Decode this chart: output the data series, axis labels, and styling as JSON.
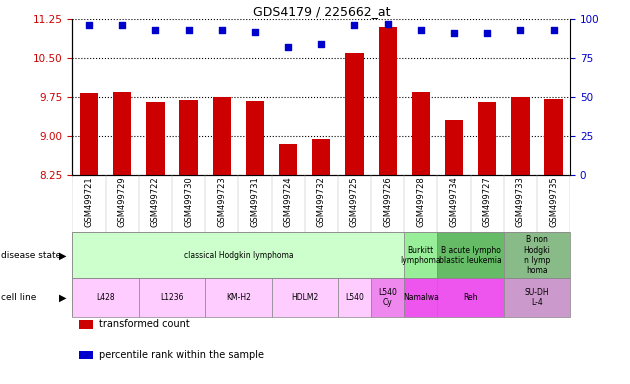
{
  "title": "GDS4179 / 225662_at",
  "samples": [
    "GSM499721",
    "GSM499729",
    "GSM499722",
    "GSM499730",
    "GSM499723",
    "GSM499731",
    "GSM499724",
    "GSM499732",
    "GSM499725",
    "GSM499726",
    "GSM499728",
    "GSM499734",
    "GSM499727",
    "GSM499733",
    "GSM499735"
  ],
  "bar_values": [
    9.82,
    9.84,
    9.65,
    9.7,
    9.75,
    9.68,
    8.85,
    8.93,
    10.6,
    11.1,
    9.84,
    9.3,
    9.65,
    9.75,
    9.72
  ],
  "dot_values": [
    96,
    96,
    93,
    93,
    93,
    92,
    82,
    84,
    96,
    97,
    93,
    91,
    91,
    93,
    93
  ],
  "ylim_left": [
    8.25,
    11.25
  ],
  "ylim_right": [
    0,
    100
  ],
  "yticks_left": [
    8.25,
    9.0,
    9.75,
    10.5,
    11.25
  ],
  "yticks_right": [
    0,
    25,
    50,
    75,
    100
  ],
  "bar_color": "#cc0000",
  "dot_color": "#0000cc",
  "chart_bg": "#ffffff",
  "grid_color": "#000000",
  "xtick_bg": "#d0d0d0",
  "disease_state_groups": [
    {
      "label": "classical Hodgkin lymphoma",
      "start": 0,
      "end": 9,
      "color": "#ccffcc"
    },
    {
      "label": "Burkitt\nlymphoma",
      "start": 10,
      "end": 10,
      "color": "#99ee99"
    },
    {
      "label": "B acute lympho\nblastic leukemia",
      "start": 11,
      "end": 12,
      "color": "#66bb66"
    },
    {
      "label": "B non\nHodgki\nn lymp\nhoma",
      "start": 13,
      "end": 14,
      "color": "#88bb88"
    }
  ],
  "cell_line_groups": [
    {
      "label": "L428",
      "start": 0,
      "end": 1,
      "color": "#ffccff"
    },
    {
      "label": "L1236",
      "start": 2,
      "end": 3,
      "color": "#ffccff"
    },
    {
      "label": "KM-H2",
      "start": 4,
      "end": 5,
      "color": "#ffccff"
    },
    {
      "label": "HDLM2",
      "start": 6,
      "end": 7,
      "color": "#ffccff"
    },
    {
      "label": "L540",
      "start": 8,
      "end": 8,
      "color": "#ffccff"
    },
    {
      "label": "L540\nCy",
      "start": 9,
      "end": 9,
      "color": "#ee88ee"
    },
    {
      "label": "Namalwa",
      "start": 10,
      "end": 10,
      "color": "#ee55ee"
    },
    {
      "label": "Reh",
      "start": 11,
      "end": 12,
      "color": "#ee55ee"
    },
    {
      "label": "SU-DH\nL-4",
      "start": 13,
      "end": 14,
      "color": "#cc99cc"
    }
  ],
  "legend": [
    {
      "color": "#cc0000",
      "label": "transformed count"
    },
    {
      "color": "#0000cc",
      "label": "percentile rank within the sample"
    }
  ]
}
